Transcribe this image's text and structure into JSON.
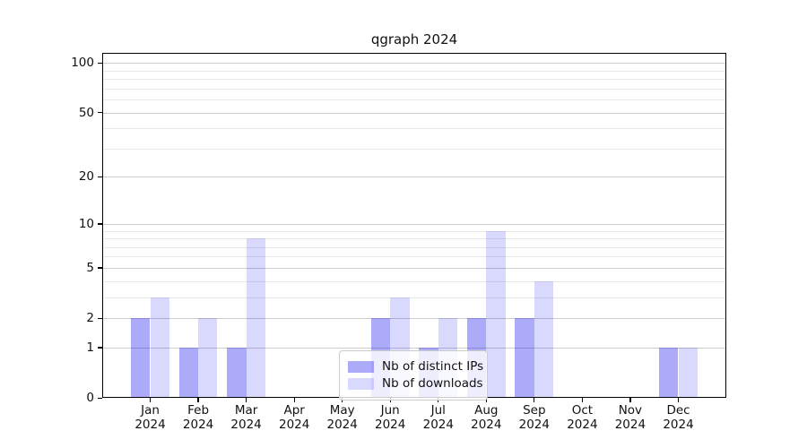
{
  "chart_data": {
    "type": "bar",
    "title": "qgraph 2024",
    "categories": [
      "Jan 2024",
      "Feb 2024",
      "Mar 2024",
      "Apr 2024",
      "May 2024",
      "Jun 2024",
      "Jul 2024",
      "Aug 2024",
      "Sep 2024",
      "Oct 2024",
      "Nov 2024",
      "Dec 2024"
    ],
    "series": [
      {
        "key": "distinct-ips",
        "name": "Nb of distinct IPs",
        "values": [
          2,
          1,
          1,
          0,
          0,
          2,
          1,
          2,
          2,
          0,
          0,
          1
        ],
        "color_hex": "#aaaafa",
        "fill_rgba": "rgba(0,0,240,0.33)"
      },
      {
        "key": "downloads",
        "name": "Nb of downloads",
        "values": [
          3,
          2,
          8,
          0,
          0,
          3,
          2,
          9,
          4,
          0,
          0,
          1
        ],
        "color_hex": "#d9d9fc",
        "fill_rgba": "rgba(0,0,240,0.15)"
      }
    ],
    "xlabel": "",
    "ylabel": "",
    "yscale": "log1p",
    "ylim": [
      0,
      115
    ],
    "yticks": [
      0,
      1,
      2,
      5,
      10,
      20,
      50,
      100
    ],
    "minor_gridlines": [
      3,
      4,
      6,
      7,
      8,
      9,
      30,
      40,
      60,
      70,
      80,
      90
    ],
    "grid": true,
    "legend_position": "lower center inside plot",
    "frame_color": "#000000",
    "major_grid_color": "#cccccc",
    "minor_grid_color": "#e9e9e9"
  },
  "legend": {
    "items": [
      {
        "label": "Nb of distinct IPs"
      },
      {
        "label": "Nb of downloads"
      }
    ]
  }
}
